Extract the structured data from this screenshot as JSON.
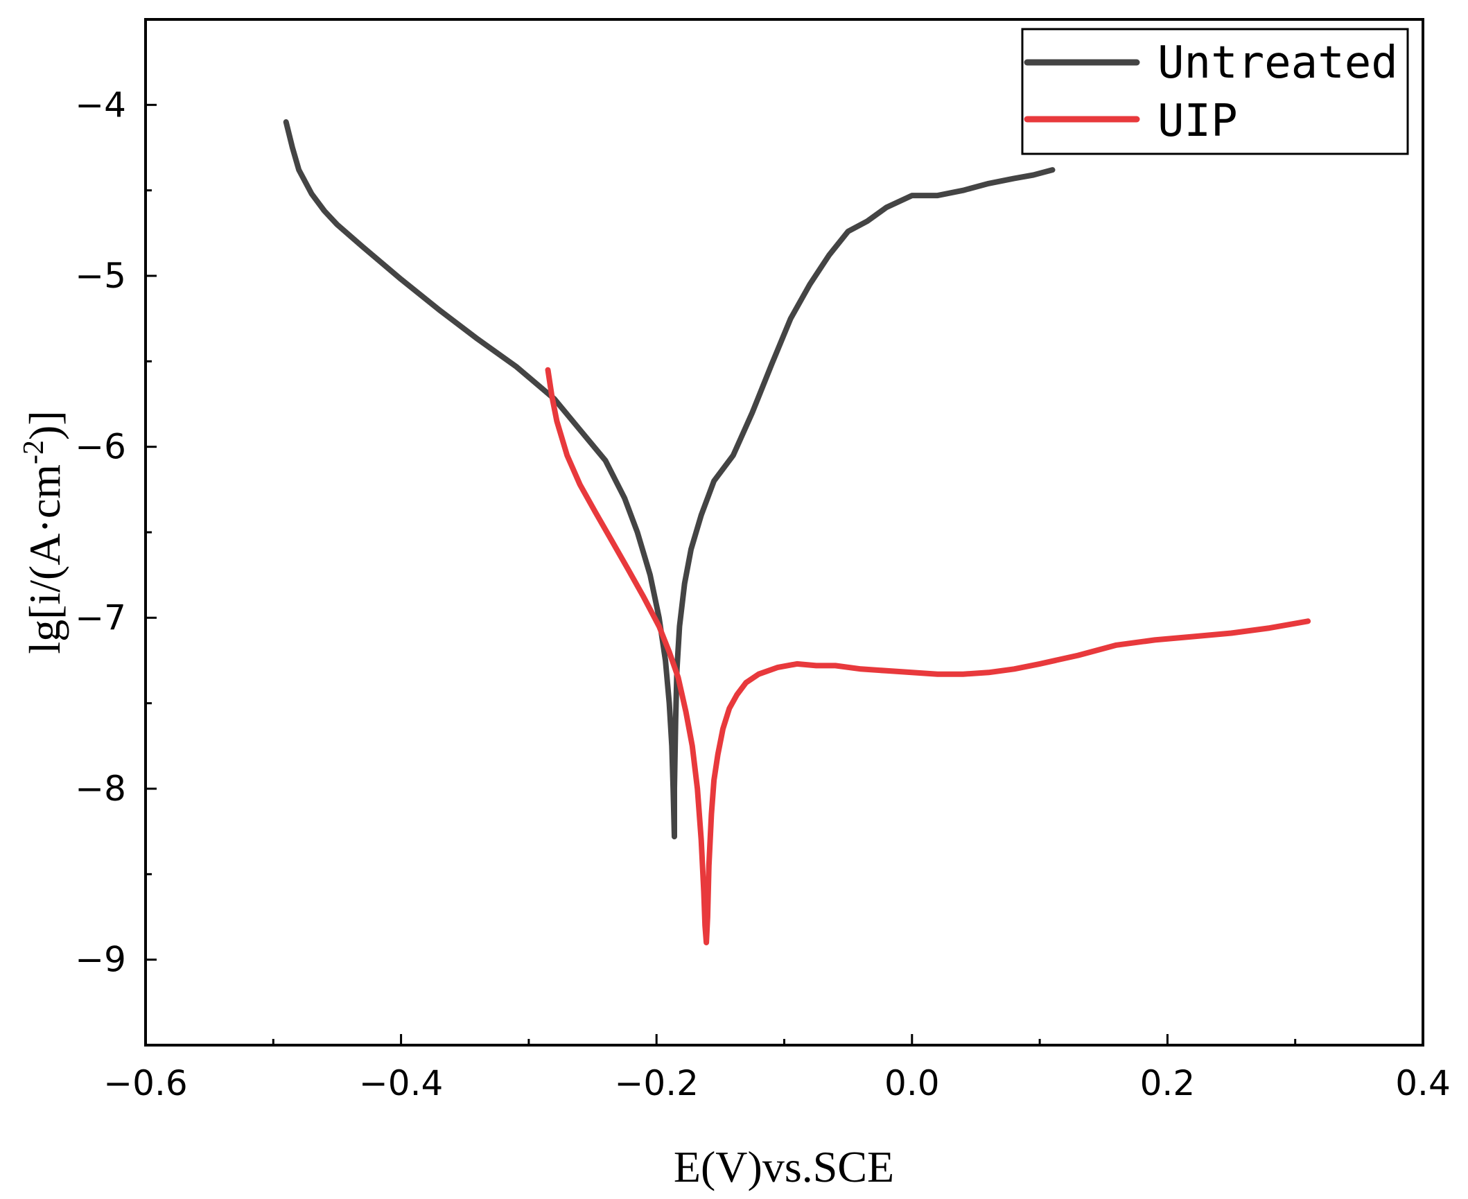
{
  "chart_data": {
    "type": "line",
    "title": "",
    "xlabel": "E(V)vs.SCE",
    "ylabel": "lg[i/(A·cm",
    "ylabel_superscript": "-2",
    "ylabel_suffix": ")]",
    "xlim": [
      -0.6,
      0.4
    ],
    "ylim": [
      -9.5,
      -3.5
    ],
    "xticks": [
      -0.6,
      -0.4,
      -0.2,
      0.0,
      0.2,
      0.4
    ],
    "xtick_labels": [
      "−0.6",
      "−0.4",
      "−0.2",
      "0.0",
      "0.2",
      "0.4"
    ],
    "yticks": [
      -9,
      -8,
      -7,
      -6,
      -5,
      -4
    ],
    "ytick_labels": [
      "−9",
      "−8",
      "−7",
      "−6",
      "−5",
      "−4"
    ],
    "grid": false,
    "legend_position": "top-right",
    "series": [
      {
        "name": "Untreated",
        "color": "#444444",
        "x": [
          -0.49,
          -0.485,
          -0.48,
          -0.47,
          -0.46,
          -0.45,
          -0.43,
          -0.4,
          -0.37,
          -0.34,
          -0.31,
          -0.28,
          -0.26,
          -0.24,
          -0.225,
          -0.215,
          -0.205,
          -0.198,
          -0.193,
          -0.19,
          -0.188,
          -0.187,
          -0.186,
          -0.186,
          -0.185,
          -0.184,
          -0.182,
          -0.178,
          -0.173,
          -0.165,
          -0.155,
          -0.14,
          -0.125,
          -0.11,
          -0.095,
          -0.08,
          -0.065,
          -0.05,
          -0.035,
          -0.02,
          0.0,
          0.02,
          0.04,
          0.06,
          0.08,
          0.095,
          0.11
        ],
        "y": [
          -4.1,
          -4.25,
          -4.38,
          -4.52,
          -4.62,
          -4.7,
          -4.83,
          -5.02,
          -5.2,
          -5.37,
          -5.53,
          -5.72,
          -5.9,
          -6.08,
          -6.3,
          -6.5,
          -6.75,
          -7.0,
          -7.25,
          -7.5,
          -7.75,
          -8.0,
          -8.28,
          -8.0,
          -7.6,
          -7.3,
          -7.05,
          -6.8,
          -6.6,
          -6.4,
          -6.2,
          -6.05,
          -5.8,
          -5.52,
          -5.25,
          -5.05,
          -4.88,
          -4.74,
          -4.68,
          -4.6,
          -4.53,
          -4.53,
          -4.5,
          -4.46,
          -4.43,
          -4.41,
          -4.38
        ]
      },
      {
        "name": "UIP",
        "color": "#e8393c",
        "x": [
          -0.285,
          -0.282,
          -0.278,
          -0.27,
          -0.26,
          -0.248,
          -0.235,
          -0.222,
          -0.21,
          -0.198,
          -0.19,
          -0.183,
          -0.177,
          -0.172,
          -0.168,
          -0.165,
          -0.163,
          -0.162,
          -0.161,
          -0.16,
          -0.159,
          -0.157,
          -0.155,
          -0.152,
          -0.148,
          -0.143,
          -0.137,
          -0.13,
          -0.12,
          -0.105,
          -0.09,
          -0.075,
          -0.06,
          -0.04,
          -0.02,
          0.0,
          0.02,
          0.04,
          0.06,
          0.08,
          0.1,
          0.13,
          0.16,
          0.19,
          0.22,
          0.25,
          0.28,
          0.31
        ],
        "y": [
          -5.55,
          -5.7,
          -5.85,
          -6.05,
          -6.22,
          -6.38,
          -6.55,
          -6.72,
          -6.88,
          -7.05,
          -7.2,
          -7.35,
          -7.55,
          -7.75,
          -8.0,
          -8.3,
          -8.6,
          -8.8,
          -8.9,
          -8.75,
          -8.45,
          -8.15,
          -7.95,
          -7.8,
          -7.65,
          -7.53,
          -7.45,
          -7.38,
          -7.33,
          -7.29,
          -7.27,
          -7.28,
          -7.28,
          -7.3,
          -7.31,
          -7.32,
          -7.33,
          -7.33,
          -7.32,
          -7.3,
          -7.27,
          -7.22,
          -7.16,
          -7.13,
          -7.11,
          -7.09,
          -7.06,
          -7.02
        ]
      }
    ]
  }
}
